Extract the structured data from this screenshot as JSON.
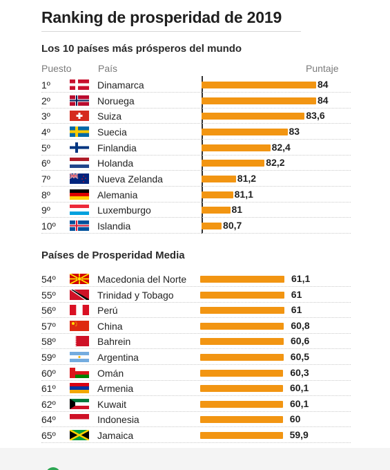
{
  "title": "Ranking de prosperidad de 2019",
  "section1": {
    "subtitle": "Los 10 países más prósperos del mundo"
  },
  "section2": {
    "subtitle": "Países de Prosperidad Media"
  },
  "columns": {
    "rank": "Puesto",
    "country": "País",
    "score": "Puntaje"
  },
  "colors": {
    "bar": "#f29512",
    "accent": "#2ca652"
  },
  "chart_data": [
    {
      "type": "bar",
      "title": "Los 10 países más prósperos del mundo",
      "ranks": [
        "1º",
        "2º",
        "3º",
        "4º",
        "5º",
        "6º",
        "7º",
        "8º",
        "9º",
        "10º"
      ],
      "categories": [
        "Dinamarca",
        "Noruega",
        "Suiza",
        "Suecia",
        "Finlandia",
        "Holanda",
        "Nueva Zelanda",
        "Alemania",
        "Luxemburgo",
        "Islandia"
      ],
      "flags": [
        "dk",
        "no",
        "ch",
        "se",
        "fi",
        "nl",
        "nz",
        "de",
        "lu",
        "is"
      ],
      "values": [
        84,
        84,
        83.6,
        83,
        82.4,
        82.2,
        81.2,
        81.1,
        81,
        80.7
      ],
      "labels": [
        "84",
        "84",
        "83,6",
        "83",
        "82,4",
        "82,2",
        "81,2",
        "81,1",
        "81",
        "80,7"
      ],
      "orientation": "horizontal",
      "xlim": [
        80,
        84
      ]
    },
    {
      "type": "bar",
      "title": "Países de Prosperidad Media",
      "ranks": [
        "54º",
        "55º",
        "56º",
        "57º",
        "58º",
        "59º",
        "60º",
        "61º",
        "62º",
        "64º",
        "65º"
      ],
      "categories": [
        "Macedonia del Norte",
        "Trinidad y Tobago",
        "Perú",
        "China",
        "Bahrein",
        "Argentina",
        "Omán",
        "Armenia",
        "Kuwait",
        "Indonesia",
        "Jamaica"
      ],
      "flags": [
        "mk",
        "tt",
        "pe",
        "cn",
        "bh",
        "ar",
        "om",
        "am",
        "kw",
        "id",
        "jm"
      ],
      "values": [
        61.1,
        61,
        61,
        60.8,
        60.6,
        60.5,
        60.3,
        60.1,
        60.1,
        60,
        59.9
      ],
      "labels": [
        "61,1",
        "61",
        "61",
        "60,8",
        "60,6",
        "60,5",
        "60,3",
        "60,1",
        "60,1",
        "60",
        "59,9"
      ],
      "orientation": "horizontal",
      "xlim": [
        0,
        61.1
      ]
    }
  ]
}
